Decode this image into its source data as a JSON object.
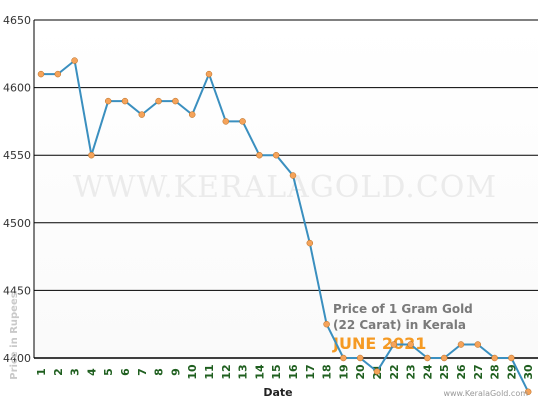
{
  "chart_data": {
    "type": "line",
    "x": [
      "1",
      "2",
      "3",
      "4",
      "5",
      "6",
      "7",
      "8",
      "9",
      "10",
      "11",
      "12",
      "13",
      "14",
      "15",
      "16",
      "17",
      "18",
      "19",
      "20",
      "21",
      "22",
      "23",
      "24",
      "25",
      "26",
      "27",
      "28",
      "29",
      "30"
    ],
    "values": [
      4610,
      4610,
      4620,
      4550,
      4590,
      4590,
      4580,
      4590,
      4590,
      4580,
      4610,
      4575,
      4575,
      4550,
      4550,
      4535,
      4485,
      4425,
      4400,
      4400,
      4390,
      4410,
      4410,
      4400,
      4400,
      4410,
      4410,
      4400,
      4400,
      4375
    ],
    "ylim": [
      4400,
      4650
    ],
    "yticks": [
      "4400",
      "4450",
      "4500",
      "4550",
      "4600",
      "4650"
    ],
    "xlabel": "Date",
    "ylabel": "Price in Rupees",
    "watermark": "WWW.KERALAGOLD.COM",
    "annotation_line1": "Price of 1 Gram Gold",
    "annotation_line2": "(22 Carat) in Kerala",
    "annotation_period": "JUNE 2021",
    "credit": "www.KeralaGold.com",
    "grid": "horizontal",
    "line_color": "#3a8fbf",
    "marker_color": "#f5a35a"
  }
}
